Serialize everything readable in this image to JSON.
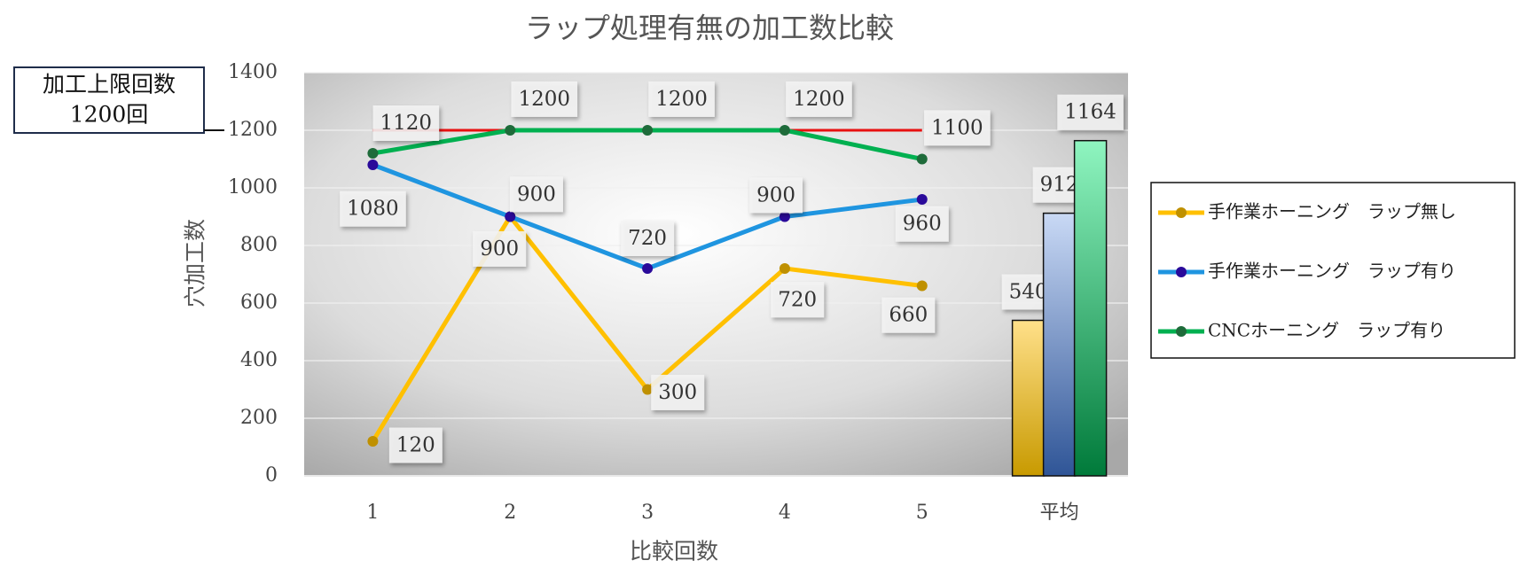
{
  "chart_data": {
    "type": "line",
    "title": "ラップ処理有無の加工数比較",
    "x_label": "比較回数",
    "y_label": "穴加工数",
    "categories": [
      "1",
      "2",
      "3",
      "4",
      "5",
      "平均"
    ],
    "average_as_bar": true,
    "series": [
      {
        "name": "手作業ホーニング　ラップ無し",
        "color": "#ffc000",
        "marker_color": "#bf9000",
        "bar_colors": [
          "#ffe08a",
          "#c89a00"
        ],
        "values": [
          120,
          900,
          300,
          720,
          660,
          540
        ]
      },
      {
        "name": "手作業ホーニング　ラップ有り",
        "color": "#1f95e0",
        "marker_color": "#2a0a9a",
        "bar_colors": [
          "#c9d9f5",
          "#2f5597"
        ],
        "values": [
          1080,
          900,
          720,
          900,
          960,
          912
        ]
      },
      {
        "name": "CNCホーニング　ラップ有り",
        "color": "#00b050",
        "marker_color": "#1e6b3a",
        "bar_colors": [
          "#8ff5c0",
          "#007a3a"
        ],
        "values": [
          1120,
          1200,
          1200,
          1200,
          1100,
          1164
        ]
      }
    ],
    "limit": {
      "value": 1200,
      "color": "#e81010"
    },
    "annotation": [
      "加工上限回数",
      "1200回"
    ],
    "ylim": [
      0,
      1400
    ],
    "yticks": [
      0,
      200,
      400,
      600,
      800,
      1000,
      1200,
      1400
    ],
    "grid": true,
    "legend": "right"
  }
}
